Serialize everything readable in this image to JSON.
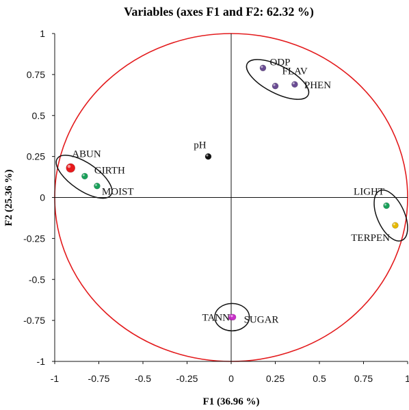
{
  "chart_data": {
    "type": "scatter",
    "title": "Variables (axes F1 and F2: 62.32 %)",
    "xlabel": "F1 (36.96 %)",
    "ylabel": "F2 (25.36 %)",
    "xlim": [
      -1,
      1
    ],
    "ylim": [
      -1,
      1
    ],
    "x_ticks": [
      "-1",
      "-0.75",
      "-0.5",
      "-0.25",
      "0",
      "0.25",
      "0.5",
      "0.75",
      "1"
    ],
    "y_ticks": [
      "1",
      "0.75",
      "0.5",
      "0.25",
      "0",
      "-0.25",
      "-0.5",
      "-0.75",
      "-1"
    ],
    "grid": false,
    "circle_color": "#e31a1c",
    "points": [
      {
        "label": "ABUN",
        "x": -0.91,
        "y": 0.18,
        "color": "#e8191b",
        "size": "large"
      },
      {
        "label": "GIRTH",
        "x": -0.83,
        "y": 0.13,
        "color": "#1aa05a",
        "size": "small"
      },
      {
        "label": "MOIST",
        "x": -0.76,
        "y": 0.07,
        "color": "#1aa05a",
        "size": "small"
      },
      {
        "label": "pH",
        "x": -0.13,
        "y": 0.25,
        "color": "#111111",
        "size": "small"
      },
      {
        "label": "ODP",
        "x": 0.18,
        "y": 0.79,
        "color": "#6a4c93",
        "size": "small"
      },
      {
        "label": "FLAV",
        "x": 0.25,
        "y": 0.68,
        "color": "#6a4c93",
        "size": "small"
      },
      {
        "label": "PHEN",
        "x": 0.36,
        "y": 0.69,
        "color": "#6a4c93",
        "size": "small"
      },
      {
        "label": "LIGHT",
        "x": 0.88,
        "y": -0.05,
        "color": "#1aa05a",
        "size": "small"
      },
      {
        "label": "TERPEN",
        "x": 0.93,
        "y": -0.17,
        "color": "#e6b800",
        "size": "small"
      },
      {
        "label": "TANN",
        "x": 0.0,
        "y": -0.73,
        "color": "#c930c9",
        "size": "small"
      },
      {
        "label": "SUGAR",
        "x": 0.01,
        "y": -0.73,
        "color": "#c930c9",
        "size": "small"
      }
    ],
    "groups": [
      [
        "ABUN",
        "GIRTH",
        "MOIST"
      ],
      [
        "ODP",
        "FLAV",
        "PHEN"
      ],
      [
        "LIGHT",
        "TERPEN"
      ],
      [
        "TANN",
        "SUGAR"
      ]
    ]
  }
}
